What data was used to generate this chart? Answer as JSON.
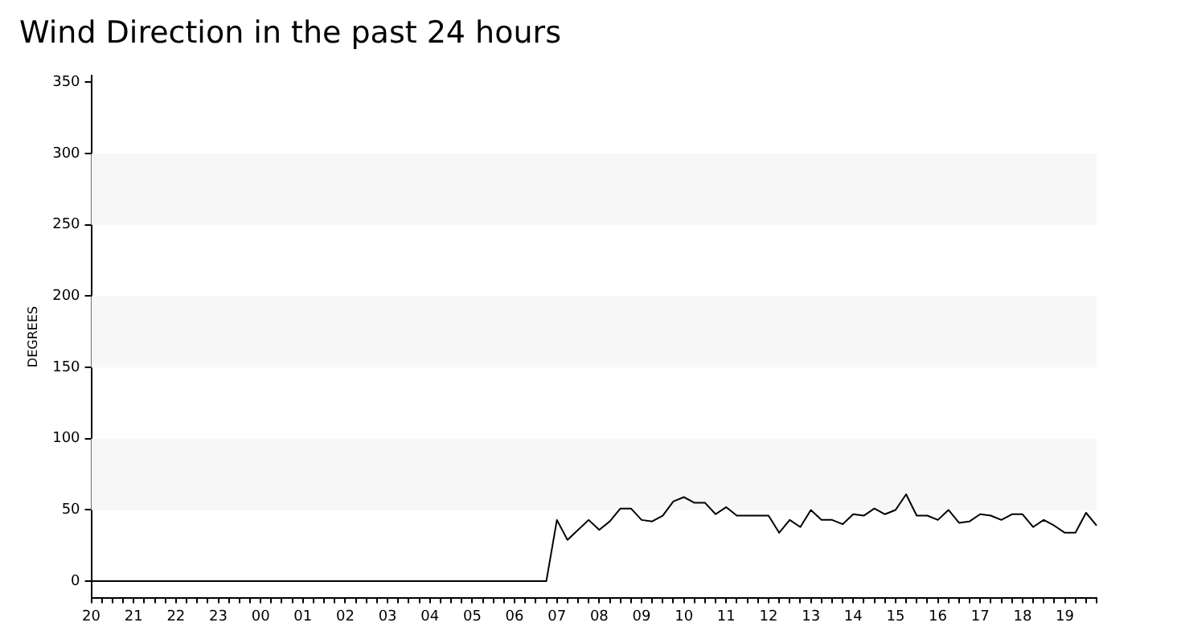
{
  "chart_data": {
    "type": "line",
    "title": "Wind Direction in the past 24 hours",
    "ylabel": "DEGREES",
    "categories": [
      "20",
      null,
      null,
      null,
      "21",
      null,
      null,
      null,
      "22",
      null,
      null,
      null,
      "23",
      null,
      null,
      null,
      "00",
      null,
      null,
      null,
      "01",
      null,
      null,
      null,
      "02",
      null,
      null,
      null,
      "03",
      null,
      null,
      null,
      "04",
      null,
      null,
      null,
      "05",
      null,
      null,
      null,
      "06",
      null,
      null,
      null,
      "07",
      null,
      null,
      null,
      "08",
      null,
      null,
      null,
      "09",
      null,
      null,
      null,
      "10",
      null,
      null,
      null,
      "11",
      null,
      null,
      null,
      "12",
      null,
      null,
      null,
      "13",
      null,
      null,
      null,
      "14",
      null,
      null,
      null,
      "15",
      null,
      null,
      null,
      "16",
      null,
      null,
      null,
      "17",
      null,
      null,
      null,
      "18",
      null,
      null,
      null,
      "19",
      null,
      null,
      null
    ],
    "series": [
      {
        "color": "#000000",
        "values": [
          0,
          0,
          0,
          0,
          0,
          0,
          0,
          0,
          0,
          0,
          0,
          0,
          0,
          0,
          0,
          0,
          0,
          0,
          0,
          0,
          0,
          0,
          0,
          0,
          0,
          0,
          0,
          0,
          0,
          0,
          0,
          0,
          0,
          0,
          0,
          0,
          0,
          0,
          0,
          0,
          0,
          0,
          0,
          0,
          43,
          29,
          36,
          43,
          36,
          42,
          51,
          51,
          43,
          42,
          46,
          56,
          59,
          55,
          55,
          47,
          52,
          46,
          46,
          46,
          46,
          34,
          43,
          38,
          50,
          43,
          43,
          40,
          47,
          46,
          51,
          47,
          50,
          61,
          46,
          46,
          43,
          50,
          41,
          42,
          47,
          46,
          43,
          47,
          47,
          38,
          43,
          39,
          34,
          34,
          48,
          39
        ]
      }
    ],
    "ylim": [
      -12,
      355
    ],
    "yticks": [
      0,
      50,
      100,
      150,
      200,
      250,
      300,
      350
    ],
    "bands": [
      {
        "axis": "y",
        "from": 50,
        "to": 100,
        "color": "#f7f7f7"
      },
      {
        "axis": "y",
        "from": 150,
        "to": 200,
        "color": "#f7f7f7"
      },
      {
        "axis": "y",
        "from": 250,
        "to": 300,
        "color": "#f7f7f7"
      }
    ],
    "grid": false,
    "legend": false,
    "marker": "none",
    "line_style": "solid"
  }
}
